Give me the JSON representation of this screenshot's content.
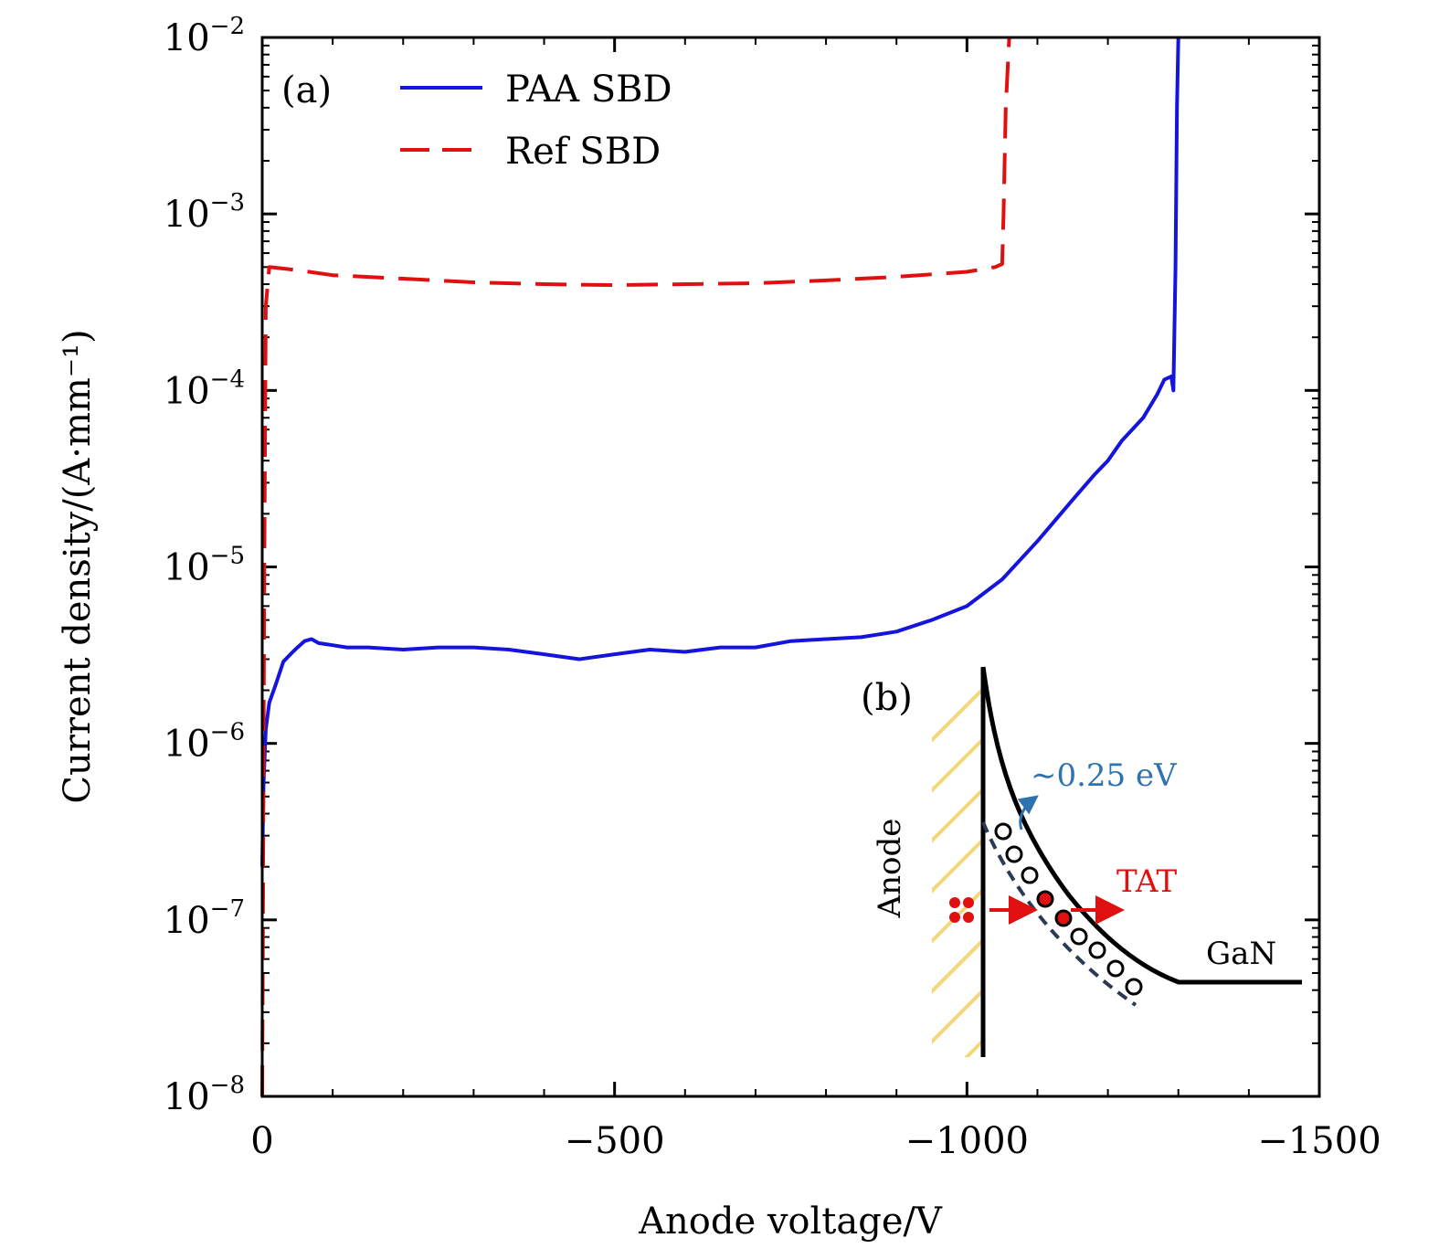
{
  "chart_data": {
    "type": "line",
    "panel_label": "(a)",
    "xlabel": "Anode voltage/V",
    "ylabel": "Current density/(A·mm⁻¹)",
    "xlim": [
      0,
      -1500
    ],
    "ylim": [
      1e-08,
      0.01
    ],
    "yscale": "log",
    "x_ticks": [
      0,
      -500,
      -1000,
      -1500
    ],
    "x_tick_labels": [
      "0",
      "−500",
      "−1000",
      "−1500"
    ],
    "y_ticks": [
      1e-08,
      1e-07,
      1e-06,
      1e-05,
      0.0001,
      0.001,
      0.01
    ],
    "y_tick_labels": [
      {
        "base": "10",
        "exp": "−8"
      },
      {
        "base": "10",
        "exp": "−7"
      },
      {
        "base": "10",
        "exp": "−6"
      },
      {
        "base": "10",
        "exp": "−5"
      },
      {
        "base": "10",
        "exp": "−4"
      },
      {
        "base": "10",
        "exp": "−3"
      },
      {
        "base": "10",
        "exp": "−2"
      }
    ],
    "legend_position": "top-left",
    "series": [
      {
        "name": "PAA SBD",
        "color": "#1414dc",
        "style": "solid",
        "x": [
          0,
          -2,
          -5,
          -10,
          -20,
          -30,
          -40,
          -50,
          -60,
          -70,
          -80,
          -100,
          -120,
          -150,
          -200,
          -250,
          -300,
          -350,
          -400,
          -450,
          -500,
          -550,
          -600,
          -650,
          -700,
          -750,
          -800,
          -850,
          -900,
          -950,
          -1000,
          -1050,
          -1100,
          -1150,
          -1180,
          -1200,
          -1220,
          -1250,
          -1270,
          -1280,
          -1290,
          -1293,
          -1296,
          -1298,
          -1300
        ],
        "y": [
          2e-07,
          6e-07,
          1.2e-06,
          1.7e-06,
          2.2e-06,
          2.9e-06,
          3.2e-06,
          3.5e-06,
          3.8e-06,
          3.9e-06,
          3.7e-06,
          3.6e-06,
          3.5e-06,
          3.5e-06,
          3.4e-06,
          3.5e-06,
          3.5e-06,
          3.4e-06,
          3.2e-06,
          3e-06,
          3.2e-06,
          3.4e-06,
          3.3e-06,
          3.5e-06,
          3.5e-06,
          3.8e-06,
          3.9e-06,
          4e-06,
          4.3e-06,
          5e-06,
          6e-06,
          8.5e-06,
          1.4e-05,
          2.4e-05,
          3.3e-05,
          4e-05,
          5.2e-05,
          7e-05,
          9.5e-05,
          0.000115,
          0.00012,
          0.0001,
          0.0005,
          0.004,
          0.01
        ]
      },
      {
        "name": "Ref SBD",
        "color": "#e01010",
        "style": "dashed",
        "x": [
          0,
          -1,
          -2,
          -3,
          -5,
          -10,
          -50,
          -100,
          -200,
          -300,
          -400,
          -500,
          -600,
          -700,
          -800,
          -900,
          -1000,
          -1040,
          -1050,
          -1052,
          -1055,
          -1060
        ],
        "y": [
          1e-08,
          1e-07,
          1e-06,
          1e-05,
          0.0003,
          0.0005,
          0.00048,
          0.00045,
          0.00043,
          0.00041,
          0.0004,
          0.000395,
          0.0004,
          0.000405,
          0.00042,
          0.00044,
          0.00047,
          0.0005,
          0.00052,
          0.001,
          0.004,
          0.01
        ]
      }
    ]
  },
  "inset": {
    "panel_label": "(b)",
    "anode_label": "Anode",
    "barrier_label": "∼0.25 eV",
    "tat_label": "TAT",
    "gan_label": "GaN",
    "colors": {
      "hatch": "#f5d77a",
      "band": "#000000",
      "trap_level": "#2a3a55",
      "arrow": "#e01010",
      "barrier": "#2e72b0"
    }
  }
}
